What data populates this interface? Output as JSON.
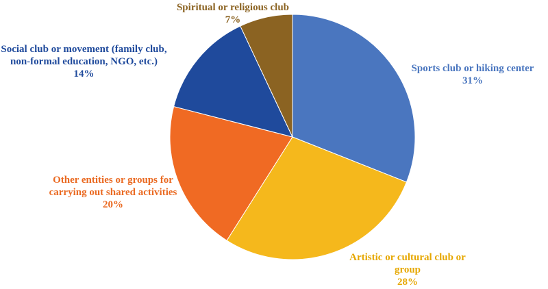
{
  "chart_data": {
    "type": "pie",
    "categories": [
      "Sports club or hiking center",
      "Artistic or cultural club or group",
      "Other entities or groups for carrying out shared activities",
      "Social club or movement (family club, non-formal education, NGO, etc.)",
      "Spiritual or religious club"
    ],
    "values": [
      31,
      28,
      20,
      14,
      7
    ],
    "value_labels": [
      "31%",
      "28%",
      "20%",
      "14%",
      "7%"
    ],
    "colors": [
      "#4a76bf",
      "#f5b81c",
      "#f06a23",
      "#1f4a9c",
      "#8b6322"
    ]
  }
}
